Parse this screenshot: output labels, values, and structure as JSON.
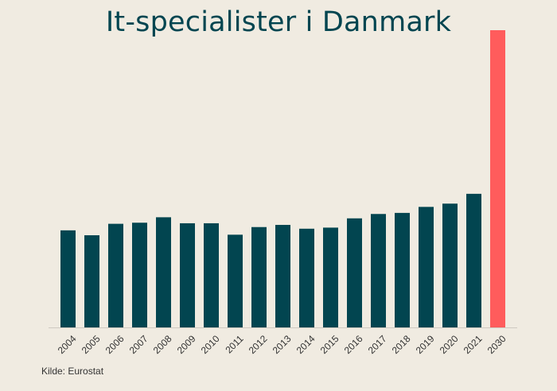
{
  "colors": {
    "background": "#f0ebe1",
    "bar": "#024550",
    "highlight": "#ff5c5c",
    "title": "#024550",
    "axis": "#cfcac1"
  },
  "source": "Kilde: Eurostat",
  "chart_data": {
    "type": "bar",
    "title": "It-specialister i Danmark",
    "xlabel": "",
    "ylabel": "",
    "grid": false,
    "legend": "none",
    "ylim": [
      0,
      5.45
    ],
    "categories": [
      "2004",
      "2005",
      "2006",
      "2007",
      "2008",
      "2009",
      "2010",
      "2011",
      "2012",
      "2013",
      "2014",
      "2015",
      "2016",
      "2017",
      "2018",
      "2019",
      "2020",
      "2021",
      "2030"
    ],
    "values": [
      1.78,
      1.69,
      1.9,
      1.92,
      2.02,
      1.91,
      1.91,
      1.7,
      1.84,
      1.88,
      1.81,
      1.83,
      2.0,
      2.08,
      2.1,
      2.21,
      2.27,
      2.45,
      5.45
    ],
    "highlight_categories": [
      "2030"
    ]
  }
}
